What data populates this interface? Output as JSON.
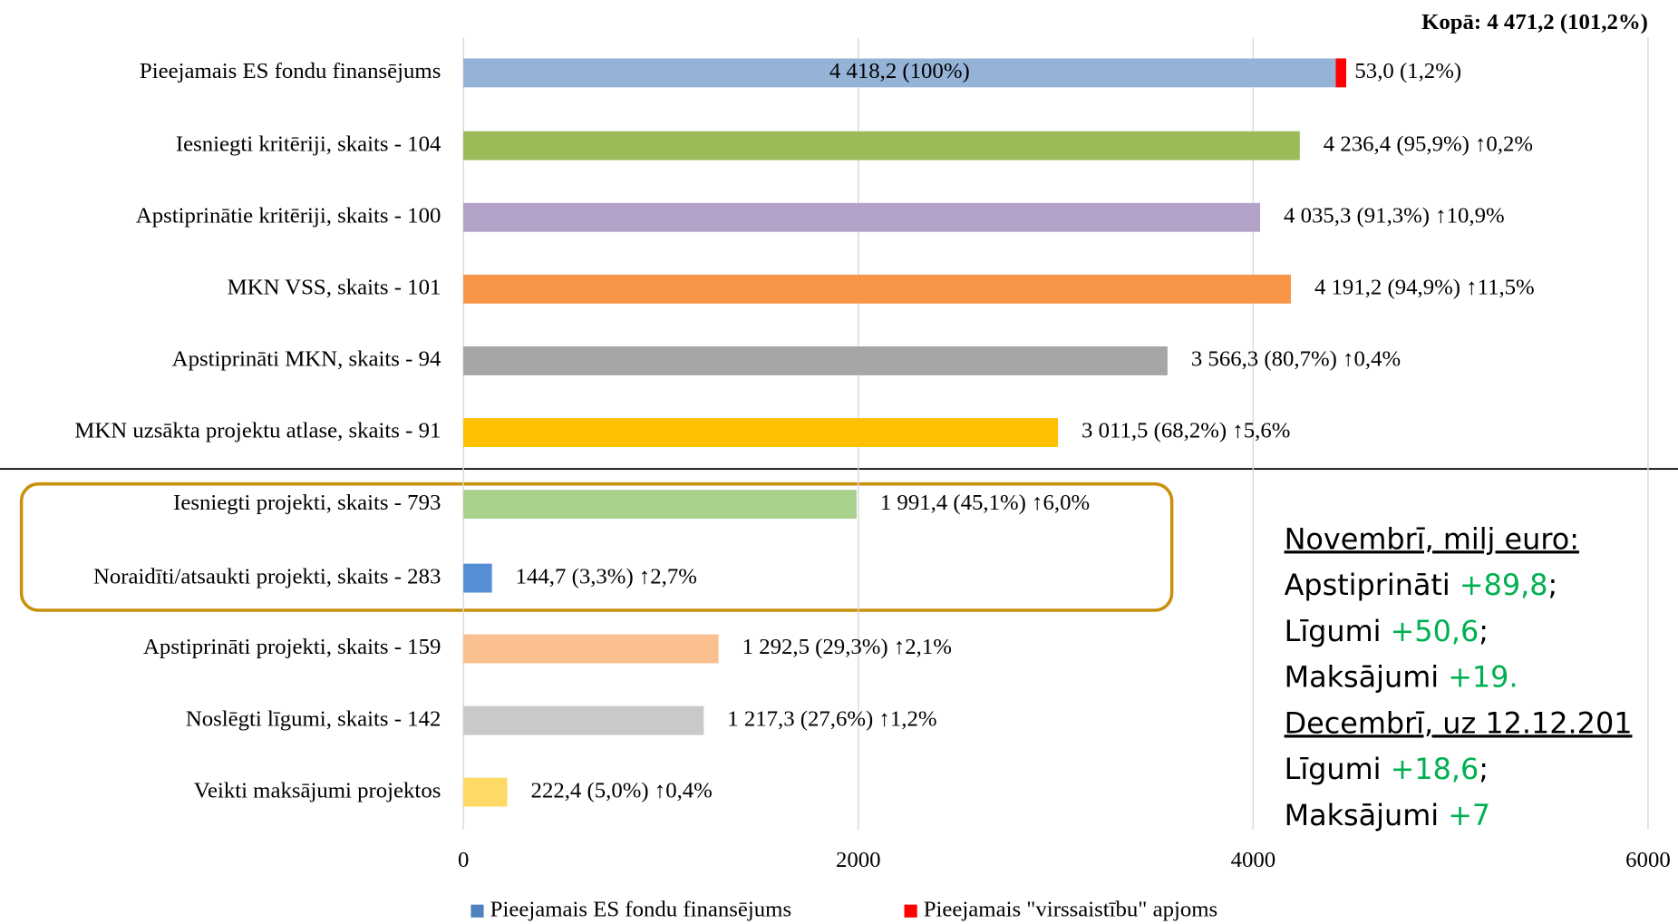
{
  "chart_data": {
    "type": "bar",
    "orientation": "horizontal",
    "title": "Kopā: 4 471,2 (101,2%)",
    "categories": [
      "Pieejamais ES fondu finansējums",
      "Iesniegti kritēriji, skaits - 104",
      "Apstiprinātie kritēriji, skaits - 100",
      "MKN VSS, skaits - 101",
      "Apstiprināti MKN, skaits - 94",
      "MKN uzsākta projektu atlase, skaits - 91",
      "Iesniegti projekti, skaits - 793",
      "Noraidīti/atsaukti projekti, skaits - 283",
      "Apstiprināti projekti, skaits - 159",
      "Noslēgti līgumi, skaits - 142",
      "Veikti maksājumi projektos"
    ],
    "series": [
      {
        "name": "Pieejamais ES fondu finansējums",
        "color": "#4f81bd",
        "colors": [
          "#95b3d7",
          "#9bbb59",
          "#b3a2c7",
          "#f79646",
          "#a6a6a6",
          "#ffc000",
          "#a9d18e",
          "#558ed5",
          "#fac090",
          "#c9c9c9",
          "#ffd966"
        ],
        "values": [
          4418.2,
          4236.4,
          4035.3,
          4191.2,
          3566.3,
          3011.5,
          1991.4,
          144.7,
          1292.5,
          1217.3,
          222.4
        ],
        "value_labels": [
          "4 418,2 (100%)",
          "4 236,4 (95,9%) ↑0,2%",
          "4 035,3 (91,3%) ↑10,9%",
          "4 191,2 (94,9%) ↑11,5%",
          "3 566,3 (80,7%) ↑0,4%",
          "3 011,5 (68,2%) ↑5,6%",
          "1 991,4 (45,1%) ↑6,0%",
          "144,7 (3,3%) ↑2,7%",
          "1 292,5 (29,3%) ↑2,1%",
          "1 217,3 (27,6%) ↑1,2%",
          "222,4 (5,0%) ↑0,4%"
        ]
      },
      {
        "name": "Pieejamais \"virssaistību\" apjoms",
        "color": "#ff0000",
        "values": [
          53.0,
          null,
          null,
          null,
          null,
          null,
          null,
          null,
          null,
          null,
          null
        ],
        "value_labels": [
          "53,0 (1,2%)",
          null,
          null,
          null,
          null,
          null,
          null,
          null,
          null,
          null,
          null
        ]
      }
    ],
    "xlim": [
      0,
      6000
    ],
    "xticks": [
      0,
      2000,
      4000,
      6000
    ],
    "grid": true,
    "legend": "bottom",
    "note": {
      "heading1": "Novembrī, milj euro:",
      "items1": [
        {
          "label": "Apstiprināti ",
          "value": "+89,8",
          "suffix": ";"
        },
        {
          "label": "Līgumi ",
          "value": "+50,6",
          "suffix": ";"
        },
        {
          "label": "Maksājumi ",
          "value": "+19."
        }
      ],
      "heading2": "Decembrī, uz 12.12.201",
      "items2": [
        {
          "label": "Līgumi ",
          "value": "+18,6",
          "suffix": ";"
        },
        {
          "label": "Maksājumi ",
          "value": "+7"
        }
      ]
    }
  }
}
